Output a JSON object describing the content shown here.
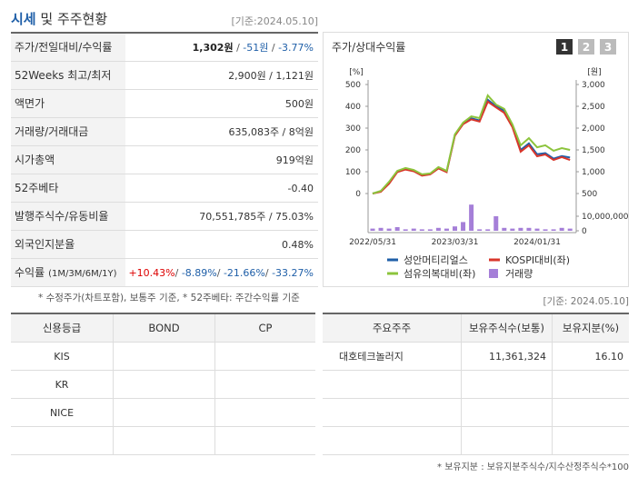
{
  "header": {
    "title_main": "시세",
    "title_rest": "및 주주현황",
    "date": "[기준:2024.05.10]"
  },
  "quote_table": {
    "rows": [
      {
        "label": "주가/전일대비/수익률",
        "segments": [
          {
            "text": "1,302원",
            "tone": "bold"
          },
          {
            "text": " / ",
            "tone": "sep"
          },
          {
            "text": "-51원",
            "tone": "down"
          },
          {
            "text": " / ",
            "tone": "sep"
          },
          {
            "text": "-3.77%",
            "tone": "down"
          }
        ]
      },
      {
        "label": "52Weeks 최고/최저",
        "segments": [
          {
            "text": "2,900원 / 1,121원",
            "tone": "plain"
          }
        ]
      },
      {
        "label": "액면가",
        "segments": [
          {
            "text": "500원",
            "tone": "plain"
          }
        ]
      },
      {
        "label": "거래량/거래대금",
        "segments": [
          {
            "text": "635,083주 / 8억원",
            "tone": "plain"
          }
        ]
      },
      {
        "label": "시가총액",
        "segments": [
          {
            "text": "919억원",
            "tone": "plain"
          }
        ]
      },
      {
        "label": "52주베타",
        "segments": [
          {
            "text": "-0.40",
            "tone": "plain"
          }
        ]
      },
      {
        "label": "발행주식수/유동비율",
        "segments": [
          {
            "text": "70,551,785주 / 75.03%",
            "tone": "plain"
          }
        ]
      },
      {
        "label": "외국인지분율",
        "segments": [
          {
            "text": "0.48%",
            "tone": "plain"
          }
        ]
      },
      {
        "label": "수익률",
        "label_note": "(1M/3M/6M/1Y)",
        "segments": [
          {
            "text": "+10.43%",
            "tone": "up"
          },
          {
            "text": "/ ",
            "tone": "sep"
          },
          {
            "text": "-8.89%",
            "tone": "down"
          },
          {
            "text": "/ ",
            "tone": "sep"
          },
          {
            "text": "-21.66%",
            "tone": "down"
          },
          {
            "text": "/ ",
            "tone": "sep"
          },
          {
            "text": "-33.27%",
            "tone": "down"
          }
        ]
      }
    ]
  },
  "notes": {
    "left": "* 수정주가(차트포함), 보통주 기준, * 52주베타: 주간수익률 기준",
    "right": "[기준: 2024.05.10]"
  },
  "chart_data": {
    "type": "line",
    "title": "주가/상대수익률",
    "tabs": [
      "1",
      "2",
      "3"
    ],
    "active_tab": 0,
    "y_label": "[%]",
    "y2_label": "[원]",
    "categories": [
      "2022/05/31",
      null,
      null,
      null,
      null,
      null,
      null,
      null,
      null,
      null,
      "2023/03/31",
      null,
      null,
      null,
      null,
      null,
      null,
      null,
      null,
      null,
      "2024/01/31",
      null,
      null,
      null,
      null
    ],
    "ylim": [
      0,
      500
    ],
    "yticks": [
      0,
      100,
      200,
      300,
      400,
      500
    ],
    "y2lim": [
      500,
      3000
    ],
    "y2ticks": [
      500,
      {
        "value": 1000,
        "label": "1,000"
      },
      {
        "value": 1500,
        "label": "1,500"
      },
      {
        "value": 2000,
        "label": "2,000"
      },
      {
        "value": 2500,
        "label": "2,500"
      },
      {
        "value": 3000,
        "label": "3,000"
      }
    ],
    "y3lim": [
      0,
      20000000
    ],
    "y3ticks": [
      0,
      {
        "value": 10000000,
        "label": "10,000,000"
      }
    ],
    "series": [
      {
        "name": "성안머티리얼스",
        "color": "#1f5fa8",
        "axis": "y2",
        "values": [
          500,
          550,
          750,
          1000,
          1060,
          1025,
          925,
          950,
          1090,
          1000,
          1840,
          2100,
          2225,
          2175,
          2650,
          2500,
          2400,
          2050,
          1500,
          1650,
          1400,
          1425,
          1300,
          1360,
          1325
        ]
      },
      {
        "name": "KOSPI대비(좌)",
        "color": "#d9362b",
        "values": [
          0,
          8,
          45,
          98,
          110,
          102,
          82,
          88,
          115,
          98,
          265,
          318,
          340,
          330,
          421,
          395,
          370,
          304,
          192,
          221,
          171,
          179,
          154,
          167,
          154
        ]
      },
      {
        "name": "섬유의복대비(좌)",
        "color": "#8cc43c",
        "values": [
          0,
          12,
          54,
          104,
          117,
          108,
          88,
          92,
          121,
          104,
          271,
          325,
          354,
          346,
          450,
          408,
          388,
          317,
          221,
          254,
          212,
          221,
          196,
          208,
          200
        ]
      },
      {
        "name": "거래량",
        "color": "#a57fd8",
        "axis": "y3",
        "kind": "bar",
        "values": [
          1500000,
          2000000,
          1500000,
          2500000,
          1000000,
          1500000,
          1000000,
          1000000,
          2000000,
          1500000,
          3000000,
          6000000,
          18000000,
          1000000,
          1000000,
          10000000,
          2000000,
          1500000,
          2000000,
          2000000,
          1500000,
          1000000,
          1000000,
          2000000,
          1500000
        ]
      }
    ]
  },
  "credit_table": {
    "headers": [
      "신용등급",
      "BOND",
      "CP"
    ],
    "rows": [
      [
        "KIS"
      ],
      [
        "KR"
      ],
      [
        "NICE"
      ]
    ]
  },
  "holder_table": {
    "headers": [
      "주요주주",
      "보유주식수(보통)",
      "보유지분(%)"
    ],
    "rows": [
      [
        "대호테크놀러지",
        "11,361,324",
        "16.10"
      ]
    ]
  },
  "footer": "* 보유지분 : 보유지분주식수/지수산정주식수*100"
}
